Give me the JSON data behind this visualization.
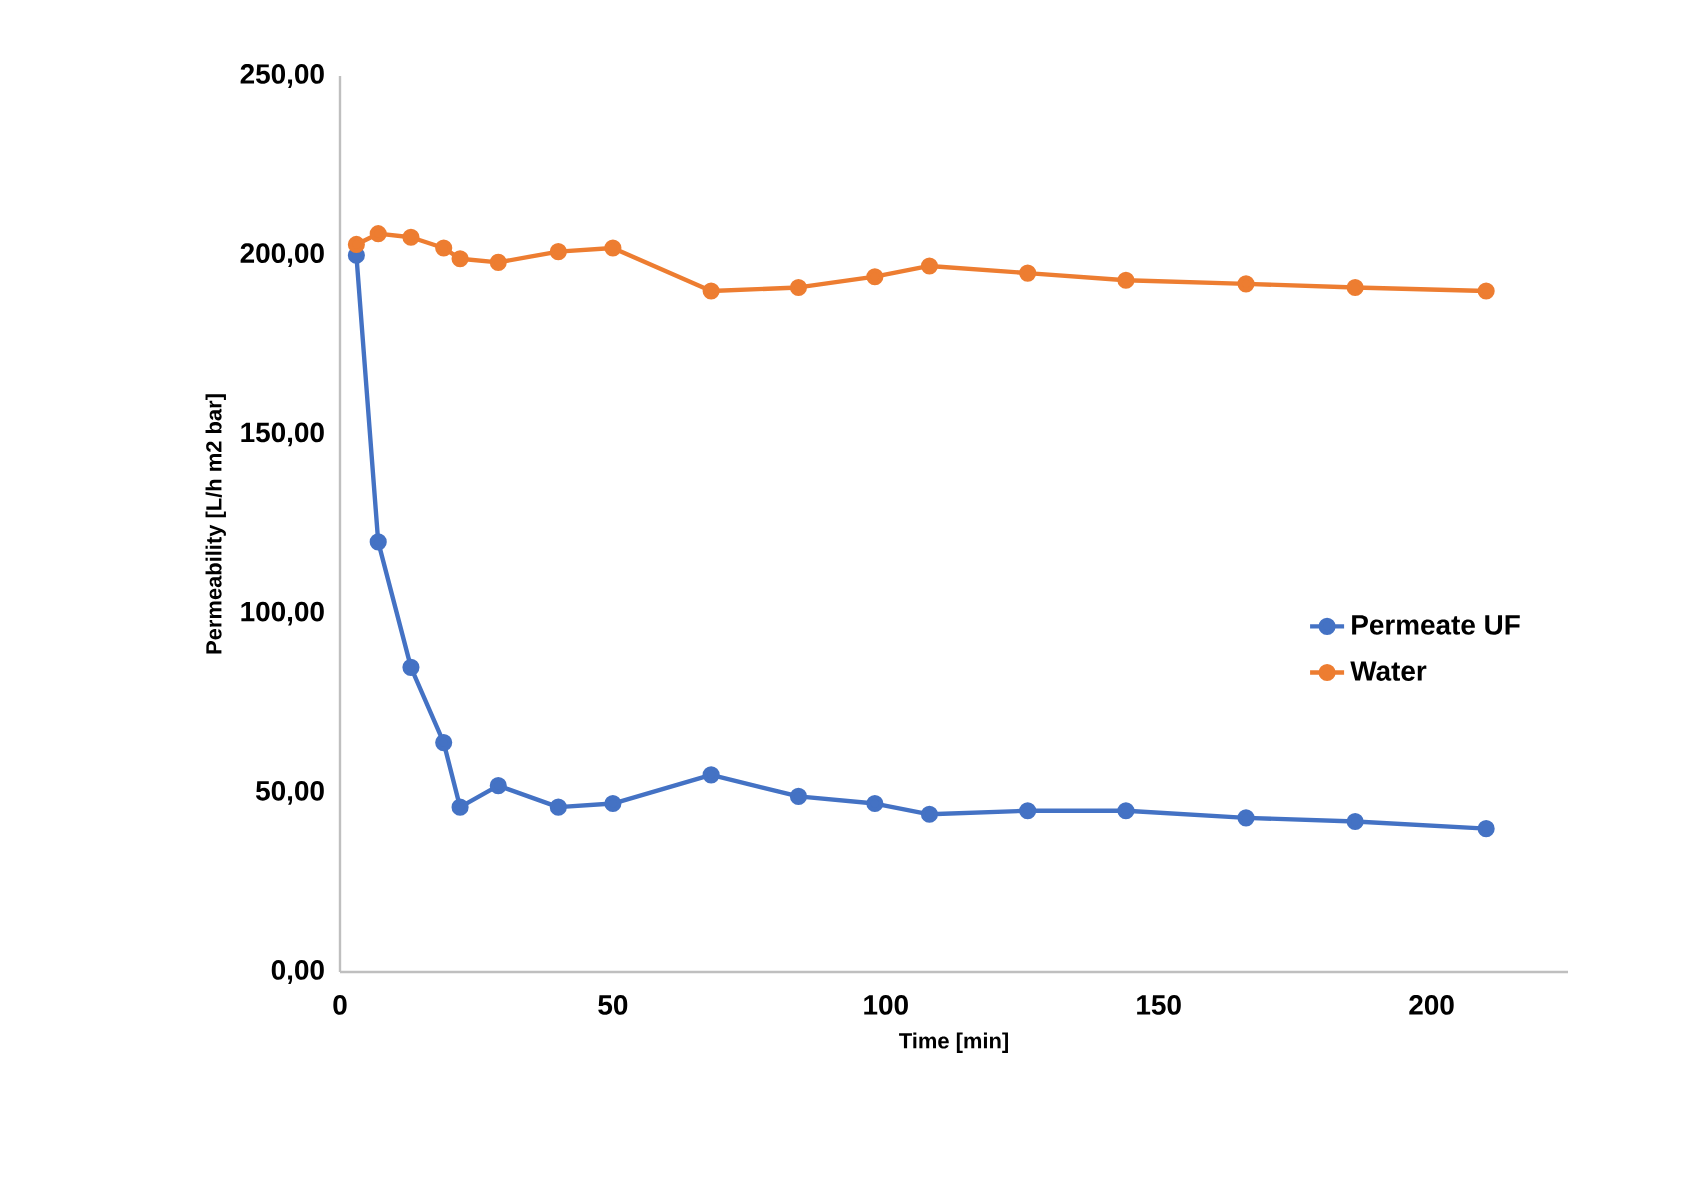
{
  "chart_data": {
    "type": "line",
    "xlabel": "Time [min]",
    "ylabel": "Permeability [L/h m2 bar]",
    "xlim": [
      0,
      225
    ],
    "xticks": [
      0,
      50,
      100,
      150,
      200
    ],
    "ylim": [
      0,
      250
    ],
    "yticks": [
      {
        "value": 0,
        "label": "0,00"
      },
      {
        "value": 50,
        "label": "50,00"
      },
      {
        "value": 100,
        "label": "100,00"
      },
      {
        "value": 150,
        "label": "150,00"
      },
      {
        "value": 200,
        "label": "200,00"
      },
      {
        "value": 250,
        "label": "250,00"
      }
    ],
    "grid": false,
    "legend": "right",
    "marker": "circle",
    "line_style": "solid",
    "series": [
      {
        "name": "Permeate UF",
        "color": "#4472c4",
        "x": [
          3,
          7,
          13,
          19,
          22,
          29,
          40,
          50,
          68,
          84,
          98,
          108,
          126,
          144,
          166,
          186,
          210
        ],
        "values": [
          200,
          120,
          85,
          64,
          46,
          52,
          46,
          47,
          55,
          49,
          47,
          44,
          45,
          45,
          43,
          42,
          40
        ]
      },
      {
        "name": "Water",
        "color": "#ed7d31",
        "x": [
          3,
          7,
          13,
          19,
          22,
          29,
          40,
          50,
          68,
          84,
          98,
          108,
          126,
          144,
          166,
          186,
          210
        ],
        "values": [
          203,
          206,
          205,
          202,
          199,
          198,
          201,
          202,
          190,
          191,
          194,
          197,
          195,
          193,
          192,
          191,
          190
        ]
      }
    ]
  }
}
